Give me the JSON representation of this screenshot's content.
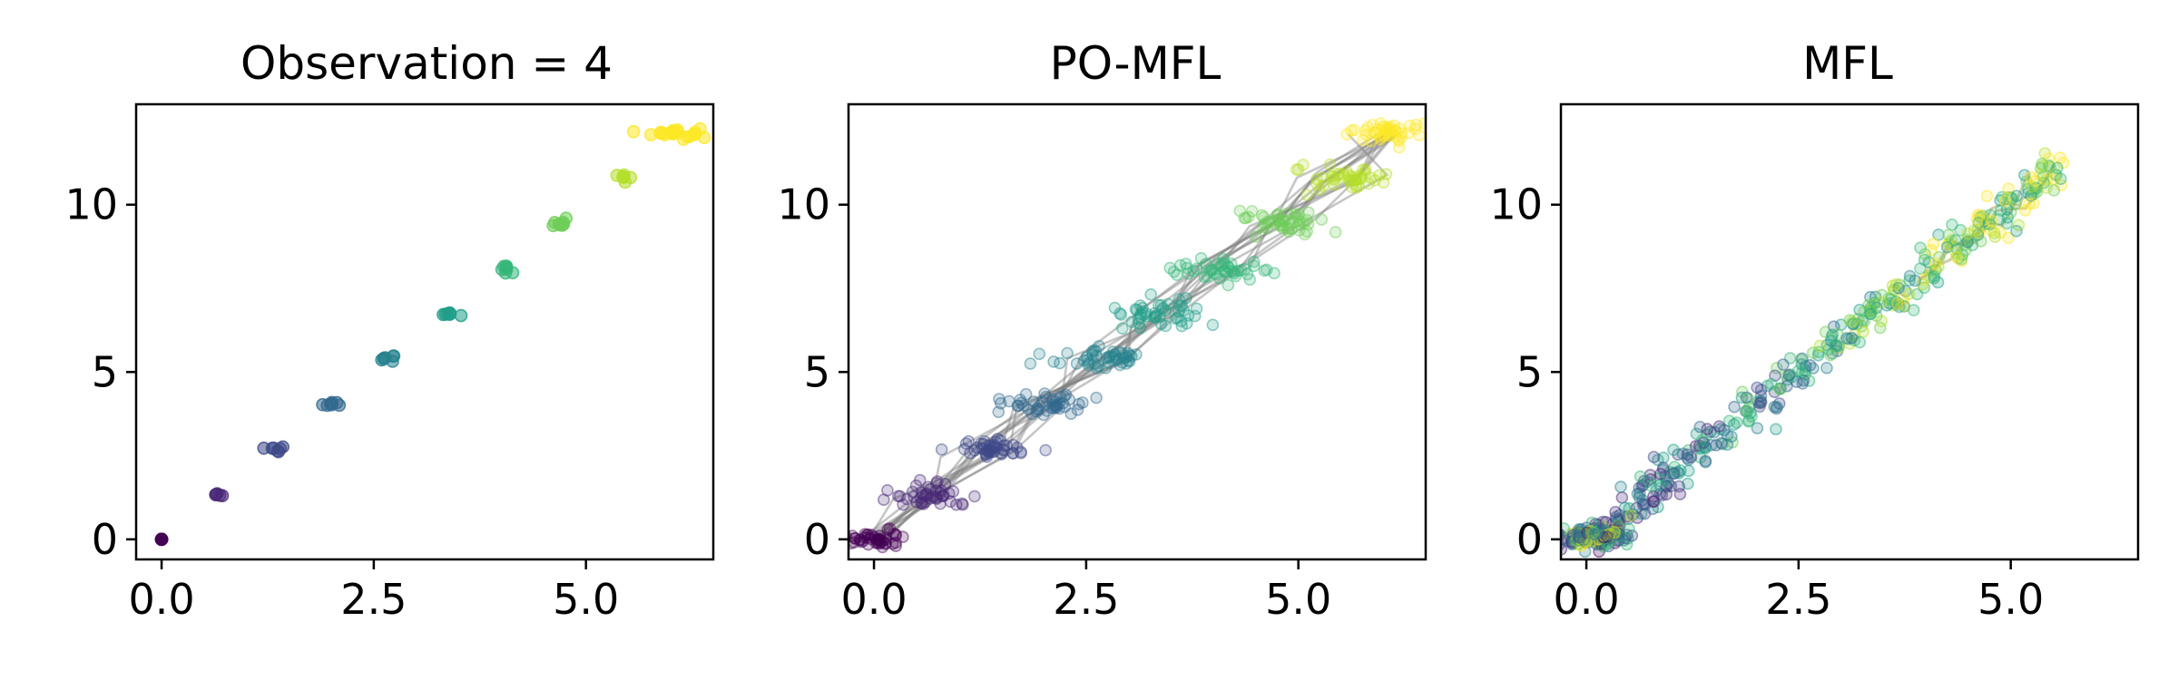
{
  "figure": {
    "panel_titles": [
      "Observation = 4",
      "PO-MFL",
      "MFL"
    ]
  },
  "chart_data": [
    {
      "type": "scatter",
      "title": "Observation = 4",
      "xlabel": "",
      "ylabel": "",
      "xlim": [
        -0.3,
        6.5
      ],
      "ylim": [
        -0.6,
        13.0
      ],
      "xticks": [
        0.0,
        2.5,
        5.0
      ],
      "xtick_labels": [
        "0.0",
        "2.5",
        "5.0"
      ],
      "yticks": [
        0,
        5,
        10
      ],
      "ytick_labels": [
        "0",
        "5",
        "10"
      ],
      "grid": false,
      "colormap": "viridis",
      "clusters": [
        {
          "x": 0.0,
          "y": 0.0,
          "spread_x": 0.02,
          "spread_y": 0.02,
          "color": "#440154",
          "n": 6
        },
        {
          "x": 0.67,
          "y": 1.35,
          "spread_x": 0.03,
          "spread_y": 0.03,
          "color": "#482878",
          "n": 5
        },
        {
          "x": 1.33,
          "y": 2.7,
          "spread_x": 0.05,
          "spread_y": 0.04,
          "color": "#3e4989",
          "n": 7
        },
        {
          "x": 2.0,
          "y": 4.05,
          "spread_x": 0.06,
          "spread_y": 0.05,
          "color": "#31688e",
          "n": 7
        },
        {
          "x": 2.65,
          "y": 5.4,
          "spread_x": 0.05,
          "spread_y": 0.06,
          "color": "#26828e",
          "n": 7
        },
        {
          "x": 3.4,
          "y": 6.75,
          "spread_x": 0.07,
          "spread_y": 0.04,
          "color": "#1f9e89",
          "n": 7
        },
        {
          "x": 4.05,
          "y": 8.1,
          "spread_x": 0.06,
          "spread_y": 0.05,
          "color": "#35b779",
          "n": 7
        },
        {
          "x": 4.72,
          "y": 9.45,
          "spread_x": 0.06,
          "spread_y": 0.1,
          "color": "#6ece58",
          "n": 8
        },
        {
          "x": 5.45,
          "y": 10.8,
          "spread_x": 0.07,
          "spread_y": 0.06,
          "color": "#b5de2b",
          "n": 7
        },
        {
          "x": 6.05,
          "y": 12.15,
          "spread_x": 0.14,
          "spread_y": 0.09,
          "color": "#fde725",
          "n": 22
        }
      ]
    },
    {
      "type": "scatter",
      "title": "PO-MFL",
      "xlabel": "",
      "ylabel": "",
      "xlim": [
        -0.3,
        6.5
      ],
      "ylim": [
        -0.6,
        13.0
      ],
      "xticks": [
        0.0,
        2.5,
        5.0
      ],
      "xtick_labels": [
        "0.0",
        "2.5",
        "5.0"
      ],
      "yticks": [
        0,
        5,
        10
      ],
      "ytick_labels": [
        "0",
        "5",
        "10"
      ],
      "grid": false,
      "colormap": "viridis",
      "trajectory_color": "#808080",
      "trajectory_count": 14,
      "clusters": [
        {
          "x": 0.0,
          "y": 0.0,
          "spread_x": 0.15,
          "spread_y": 0.12,
          "color": "#440154",
          "n": 45
        },
        {
          "x": 0.67,
          "y": 1.35,
          "spread_x": 0.25,
          "spread_y": 0.2,
          "color": "#482878",
          "n": 45
        },
        {
          "x": 1.35,
          "y": 2.7,
          "spread_x": 0.25,
          "spread_y": 0.15,
          "color": "#3e4989",
          "n": 45
        },
        {
          "x": 2.0,
          "y": 4.05,
          "spread_x": 0.25,
          "spread_y": 0.18,
          "color": "#31688e",
          "n": 45
        },
        {
          "x": 2.7,
          "y": 5.4,
          "spread_x": 0.28,
          "spread_y": 0.15,
          "color": "#26828e",
          "n": 45
        },
        {
          "x": 3.4,
          "y": 6.75,
          "spread_x": 0.3,
          "spread_y": 0.18,
          "color": "#1f9e89",
          "n": 45
        },
        {
          "x": 4.05,
          "y": 8.1,
          "spread_x": 0.28,
          "spread_y": 0.16,
          "color": "#35b779",
          "n": 45
        },
        {
          "x": 4.72,
          "y": 9.45,
          "spread_x": 0.28,
          "spread_y": 0.2,
          "color": "#6ece58",
          "n": 45
        },
        {
          "x": 5.45,
          "y": 10.8,
          "spread_x": 0.3,
          "spread_y": 0.16,
          "color": "#b5de2b",
          "n": 45
        },
        {
          "x": 6.05,
          "y": 12.15,
          "spread_x": 0.2,
          "spread_y": 0.15,
          "color": "#fde725",
          "n": 45
        }
      ]
    },
    {
      "type": "scatter",
      "title": "MFL",
      "xlabel": "",
      "ylabel": "",
      "xlim": [
        -0.3,
        6.5
      ],
      "ylim": [
        -0.6,
        13.0
      ],
      "xticks": [
        0.0,
        2.5,
        5.0
      ],
      "xtick_labels": [
        "0.0",
        "2.5",
        "5.0"
      ],
      "yticks": [
        0,
        5,
        10
      ],
      "ytick_labels": [
        "0",
        "5",
        "10"
      ],
      "grid": false,
      "colormap": "viridis",
      "trajectory_color": "#a9a265",
      "trajectory_count": 3,
      "origin_cluster": {
        "x": 0.1,
        "y": 0.1,
        "spread_x": 0.18,
        "spread_y": 0.15,
        "n": 160
      },
      "line_band": {
        "x_start": 0.0,
        "x_end": 5.6,
        "slope": 2.0,
        "spread": 0.35,
        "n": 380
      },
      "palette": [
        "#440154",
        "#482878",
        "#3e4989",
        "#31688e",
        "#26828e",
        "#1f9e89",
        "#35b779",
        "#6ece58",
        "#b5de2b",
        "#fde725"
      ]
    }
  ]
}
